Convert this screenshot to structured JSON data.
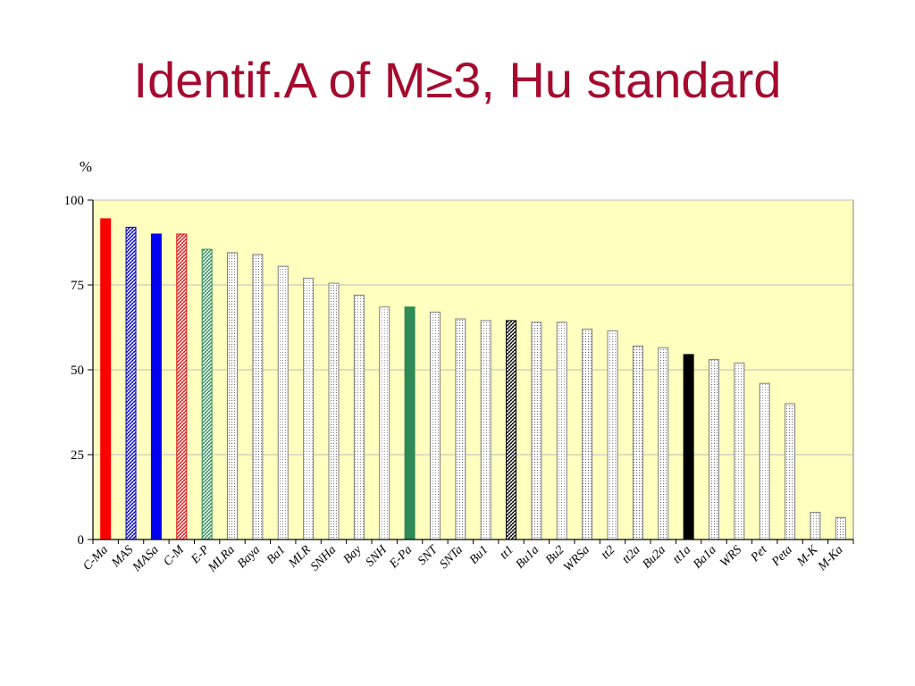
{
  "slide": {
    "title": "Identif.A of M≥3, Hu standard"
  },
  "chart_data": {
    "type": "bar",
    "ylabel": "%",
    "ylim": [
      0,
      100
    ],
    "yticks": [
      0,
      25,
      50,
      75,
      100
    ],
    "grid": true,
    "plot_background": "#ffffc0",
    "categories": [
      "C-Ma",
      "MAS",
      "MASa",
      "C-M",
      "E-P",
      "MLRa",
      "Baya",
      "Ba1",
      "MLR",
      "SNHa",
      "Bay",
      "SNH",
      "E-Pa",
      "SNT",
      "SNTa",
      "Bu1",
      "tt1",
      "Bu1a",
      "Bu2",
      "WRSa",
      "tt2",
      "tt2a",
      "Bu2a",
      "tt1a",
      "Ba1a",
      "WRS",
      "Pet",
      "Peta",
      "M-K",
      "M-Ka"
    ],
    "values": [
      94.5,
      92,
      90,
      90,
      85.5,
      84.5,
      84,
      80.5,
      77,
      75.5,
      72,
      68.5,
      68.5,
      67,
      65,
      64.5,
      64.5,
      64,
      64,
      62,
      61.5,
      57,
      56.5,
      54.5,
      53,
      52,
      46,
      40,
      8,
      6.5
    ],
    "bar_styles": [
      {
        "fill": "solid",
        "color": "#ff0000"
      },
      {
        "fill": "hatch",
        "color": "#0000cc"
      },
      {
        "fill": "solid",
        "color": "#0000ee"
      },
      {
        "fill": "hatch",
        "color": "#e01010"
      },
      {
        "fill": "hatch",
        "color": "#2e8b57"
      },
      {
        "fill": "dots",
        "color": "#666666"
      },
      {
        "fill": "dots",
        "color": "#666666"
      },
      {
        "fill": "dots",
        "color": "#888888"
      },
      {
        "fill": "dots",
        "color": "#999999"
      },
      {
        "fill": "dots",
        "color": "#666666"
      },
      {
        "fill": "dots",
        "color": "#888888"
      },
      {
        "fill": "dots",
        "color": "#999999"
      },
      {
        "fill": "solid",
        "color": "#2e8b57"
      },
      {
        "fill": "dots",
        "color": "#888888"
      },
      {
        "fill": "dots",
        "color": "#666666"
      },
      {
        "fill": "dots",
        "color": "#888888"
      },
      {
        "fill": "hatch",
        "color": "#000000"
      },
      {
        "fill": "dots",
        "color": "#666666"
      },
      {
        "fill": "dots",
        "color": "#888888"
      },
      {
        "fill": "dots",
        "color": "#666666"
      },
      {
        "fill": "dots",
        "color": "#888888"
      },
      {
        "fill": "dots",
        "color": "#666666"
      },
      {
        "fill": "dots",
        "color": "#666666"
      },
      {
        "fill": "solid",
        "color": "#000000"
      },
      {
        "fill": "dots",
        "color": "#666666"
      },
      {
        "fill": "dots",
        "color": "#888888"
      },
      {
        "fill": "dots",
        "color": "#999999"
      },
      {
        "fill": "dots",
        "color": "#666666"
      },
      {
        "fill": "dots",
        "color": "#888888"
      },
      {
        "fill": "dots",
        "color": "#666666"
      }
    ]
  }
}
